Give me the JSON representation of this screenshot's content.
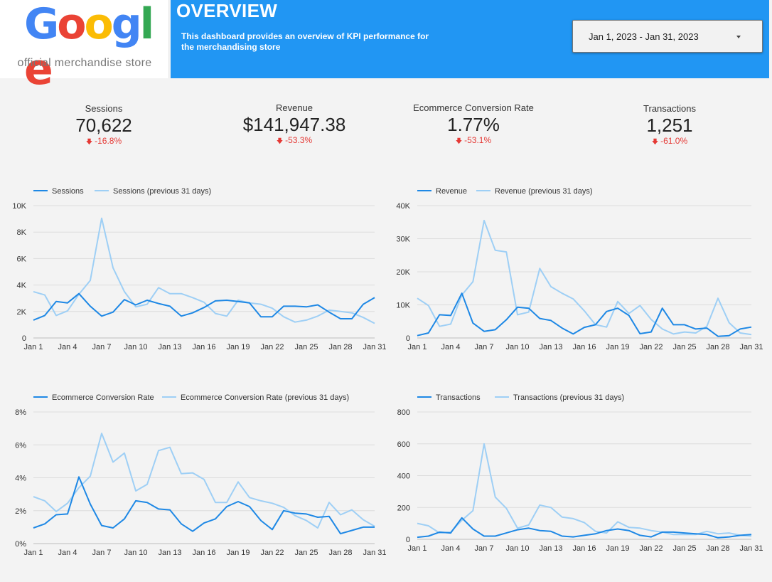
{
  "brand": {
    "logo_letters": [
      {
        "char": "G",
        "color": "#4285F4"
      },
      {
        "char": "o",
        "color": "#EA4335"
      },
      {
        "char": "o",
        "color": "#FBBC05"
      },
      {
        "char": "g",
        "color": "#4285F4"
      },
      {
        "char": "l",
        "color": "#34A853"
      },
      {
        "char": "e",
        "color": "#EA4335"
      }
    ],
    "subtitle": "official merchandise store"
  },
  "header": {
    "title": "OVERVIEW",
    "description": "This dashboard provides an overview of KPI performance for the merchandising store",
    "background": "#2196f3"
  },
  "date_range": {
    "value": "Jan 1, 2023 - Jan 31, 2023",
    "icon": "caret-down-icon"
  },
  "kpis": [
    {
      "label": "Sessions",
      "value": "70,622",
      "delta": "-16.8%",
      "icon": "arrow-down-icon"
    },
    {
      "label": "Revenue",
      "value": "$141,947.38",
      "delta": "-53.3%",
      "icon": "arrow-down-icon"
    },
    {
      "label": "Ecommerce Conversion Rate",
      "value": "1.77%",
      "delta": "-53.1%",
      "icon": "arrow-down-icon"
    },
    {
      "label": "Transactions",
      "value": "1,251",
      "delta": "-61.0%",
      "icon": "arrow-down-icon"
    }
  ],
  "colors": {
    "current": "#1e88e5",
    "previous": "#9ecff5",
    "negative": "#e53935"
  },
  "chart_data": [
    {
      "type": "line",
      "id": "sessions",
      "x_tick_labels": [
        "Jan 1",
        "Jan 4",
        "Jan 7",
        "Jan 10",
        "Jan 13",
        "Jan 16",
        "Jan 19",
        "Jan 22",
        "Jan 25",
        "Jan 28",
        "Jan 31"
      ],
      "y_tick_labels": [
        "0",
        "2K",
        "4K",
        "6K",
        "8K",
        "10K"
      ],
      "ylim": [
        0,
        10000
      ],
      "legend_position": "top-left",
      "series": [
        {
          "name": "Sessions",
          "values": [
            1350,
            1700,
            2750,
            2650,
            3350,
            2400,
            1650,
            1950,
            2900,
            2500,
            2850,
            2600,
            2400,
            1650,
            1900,
            2300,
            2800,
            2850,
            2750,
            2650,
            1600,
            1600,
            2400,
            2400,
            2350,
            2500,
            1950,
            1450,
            1450,
            2550,
            3050
          ]
        },
        {
          "name": "Sessions (previous 31 days)",
          "values": [
            3500,
            3250,
            1700,
            2050,
            3300,
            4350,
            9050,
            5300,
            3500,
            2350,
            2550,
            3800,
            3350,
            3350,
            3050,
            2700,
            1850,
            1650,
            2850,
            2650,
            2550,
            2250,
            1600,
            1200,
            1350,
            1650,
            2100,
            2000,
            1900,
            1550,
            1100
          ]
        }
      ]
    },
    {
      "type": "line",
      "id": "revenue",
      "x_tick_labels": [
        "Jan 1",
        "Jan 4",
        "Jan 7",
        "Jan 10",
        "Jan 13",
        "Jan 16",
        "Jan 19",
        "Jan 22",
        "Jan 25",
        "Jan 28",
        "Jan 31"
      ],
      "y_tick_labels": [
        "0",
        "10K",
        "20K",
        "30K",
        "40K"
      ],
      "ylim": [
        0,
        40000
      ],
      "legend_position": "top-left",
      "series": [
        {
          "name": "Revenue",
          "values": [
            700,
            1500,
            7000,
            6800,
            13500,
            4500,
            2000,
            2500,
            5500,
            9300,
            9000,
            5900,
            5300,
            3000,
            1200,
            3200,
            4000,
            8000,
            9000,
            6800,
            1300,
            1800,
            9000,
            4000,
            4000,
            2700,
            3000,
            500,
            700,
            2700,
            3300
          ]
        },
        {
          "name": "Revenue (previous 31 days)",
          "values": [
            12000,
            9800,
            3500,
            4200,
            13000,
            17000,
            35500,
            26500,
            26000,
            7000,
            7800,
            21000,
            15500,
            13500,
            11800,
            8200,
            4000,
            3300,
            11000,
            7400,
            9800,
            5600,
            2700,
            1200,
            1800,
            1500,
            3500,
            12000,
            4600,
            1500,
            1000
          ]
        }
      ]
    },
    {
      "type": "line",
      "id": "conversion",
      "x_tick_labels": [
        "Jan 1",
        "Jan 4",
        "Jan 7",
        "Jan 10",
        "Jan 13",
        "Jan 16",
        "Jan 19",
        "Jan 22",
        "Jan 25",
        "Jan 28",
        "Jan 31"
      ],
      "y_tick_labels": [
        "0%",
        "2%",
        "4%",
        "6%",
        "8%"
      ],
      "ylim": [
        0,
        8
      ],
      "legend_position": "top-left",
      "series": [
        {
          "name": "Ecommerce Conversion Rate",
          "values": [
            0.95,
            1.2,
            1.75,
            1.8,
            4.05,
            2.4,
            1.1,
            0.95,
            1.5,
            2.6,
            2.5,
            2.1,
            2.05,
            1.2,
            0.75,
            1.25,
            1.5,
            2.25,
            2.55,
            2.25,
            1.4,
            0.85,
            2.0,
            1.85,
            1.8,
            1.6,
            1.65,
            0.6,
            0.8,
            1.0,
            1.0
          ]
        },
        {
          "name": "Ecommerce Conversion Rate (previous 31 days)",
          "values": [
            2.85,
            2.6,
            1.95,
            2.45,
            3.4,
            4.1,
            6.7,
            4.95,
            5.5,
            3.2,
            3.6,
            5.65,
            5.85,
            4.25,
            4.3,
            3.9,
            2.5,
            2.5,
            3.75,
            2.8,
            2.6,
            2.45,
            2.2,
            1.7,
            1.4,
            0.95,
            2.5,
            1.75,
            2.05,
            1.45,
            1.05
          ]
        }
      ]
    },
    {
      "type": "line",
      "id": "transactions",
      "x_tick_labels": [
        "Jan 1",
        "Jan 4",
        "Jan 7",
        "Jan 10",
        "Jan 13",
        "Jan 16",
        "Jan 19",
        "Jan 22",
        "Jan 25",
        "Jan 28",
        "Jan 31"
      ],
      "y_tick_labels": [
        "0",
        "200",
        "400",
        "600",
        "800"
      ],
      "ylim": [
        0,
        800
      ],
      "legend_position": "top-left",
      "series": [
        {
          "name": "Transactions",
          "values": [
            13,
            20,
            45,
            40,
            135,
            65,
            20,
            20,
            40,
            60,
            70,
            55,
            50,
            20,
            15,
            25,
            35,
            55,
            65,
            55,
            25,
            15,
            45,
            45,
            40,
            35,
            30,
            10,
            15,
            25,
            30
          ]
        },
        {
          "name": "Transactions (previous 31 days)",
          "values": [
            100,
            85,
            40,
            45,
            120,
            180,
            600,
            265,
            195,
            70,
            90,
            215,
            200,
            140,
            130,
            105,
            50,
            40,
            110,
            75,
            70,
            55,
            45,
            30,
            30,
            30,
            50,
            35,
            40,
            25,
            20
          ]
        }
      ]
    }
  ]
}
